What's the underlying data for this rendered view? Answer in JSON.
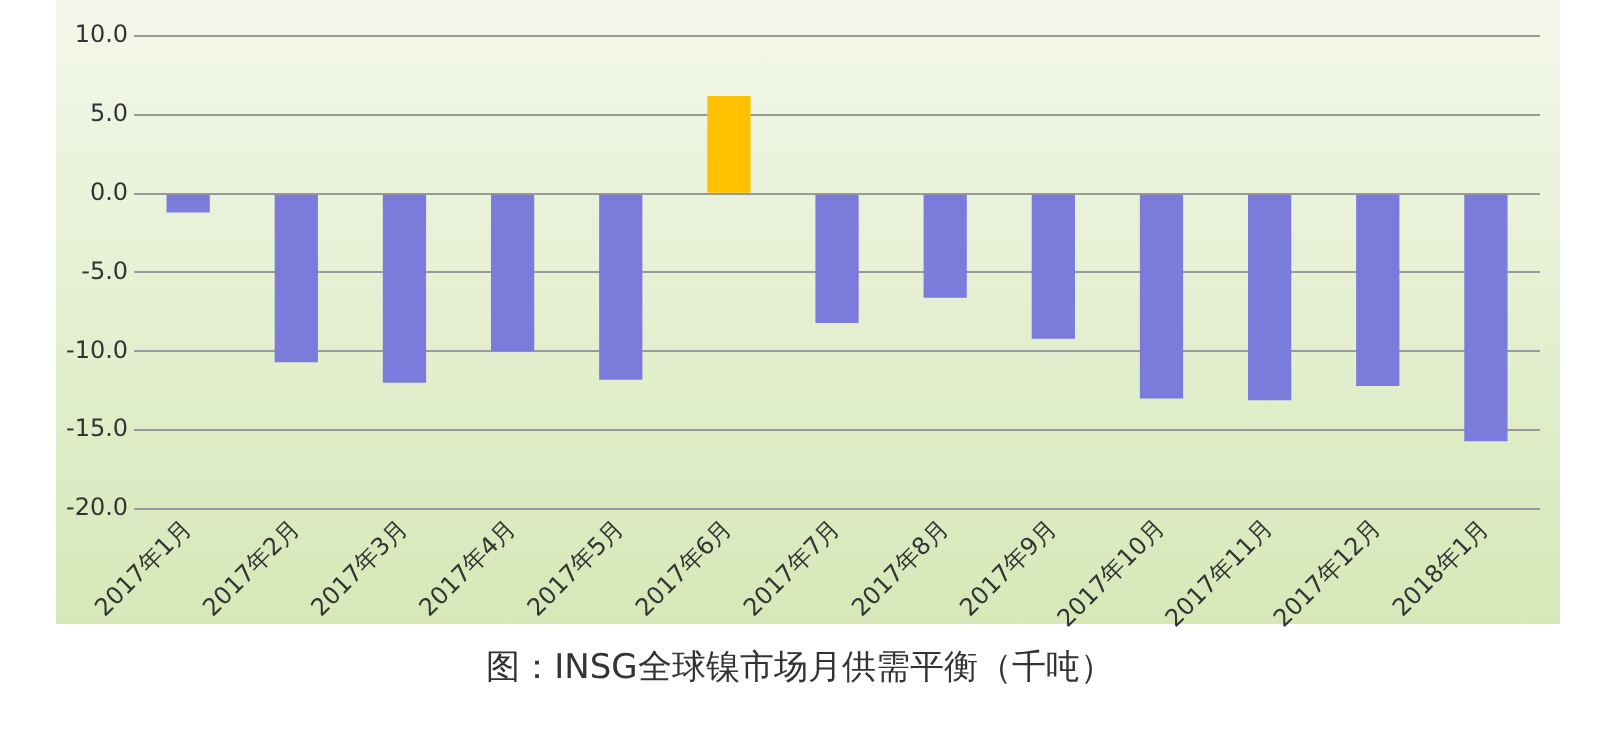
{
  "chart_data": {
    "type": "bar",
    "title": "图：INSG全球镍市场月供需平衡（千吨）",
    "categories": [
      "2017年1月",
      "2017年2月",
      "2017年3月",
      "2017年4月",
      "2017年5月",
      "2017年6月",
      "2017年7月",
      "2017年8月",
      "2017年9月",
      "2017年10月",
      "2017年11月",
      "2017年12月",
      "2018年1月"
    ],
    "values": [
      -1.2,
      -10.7,
      -12.0,
      -10.0,
      -11.8,
      6.2,
      -8.2,
      -6.6,
      -9.2,
      -13.0,
      -13.1,
      -12.2,
      -15.7
    ],
    "colors": [
      "#7b7bdc",
      "#7b7bdc",
      "#7b7bdc",
      "#7b7bdc",
      "#7b7bdc",
      "#ffc000",
      "#7b7bdc",
      "#7b7bdc",
      "#7b7bdc",
      "#7b7bdc",
      "#7b7bdc",
      "#7b7bdc",
      "#7b7bdc"
    ],
    "ylim": [
      -20,
      10
    ],
    "yticks": [
      {
        "value": -20,
        "label": "-20.0"
      },
      {
        "value": -15,
        "label": "-15.0"
      },
      {
        "value": -10,
        "label": "-10.0"
      },
      {
        "value": -5,
        "label": "-5.0"
      },
      {
        "value": 0,
        "label": "0.0"
      },
      {
        "value": 5,
        "label": "5.0"
      },
      {
        "value": 10,
        "label": "10.0"
      }
    ],
    "grid": "y",
    "legend": false
  }
}
